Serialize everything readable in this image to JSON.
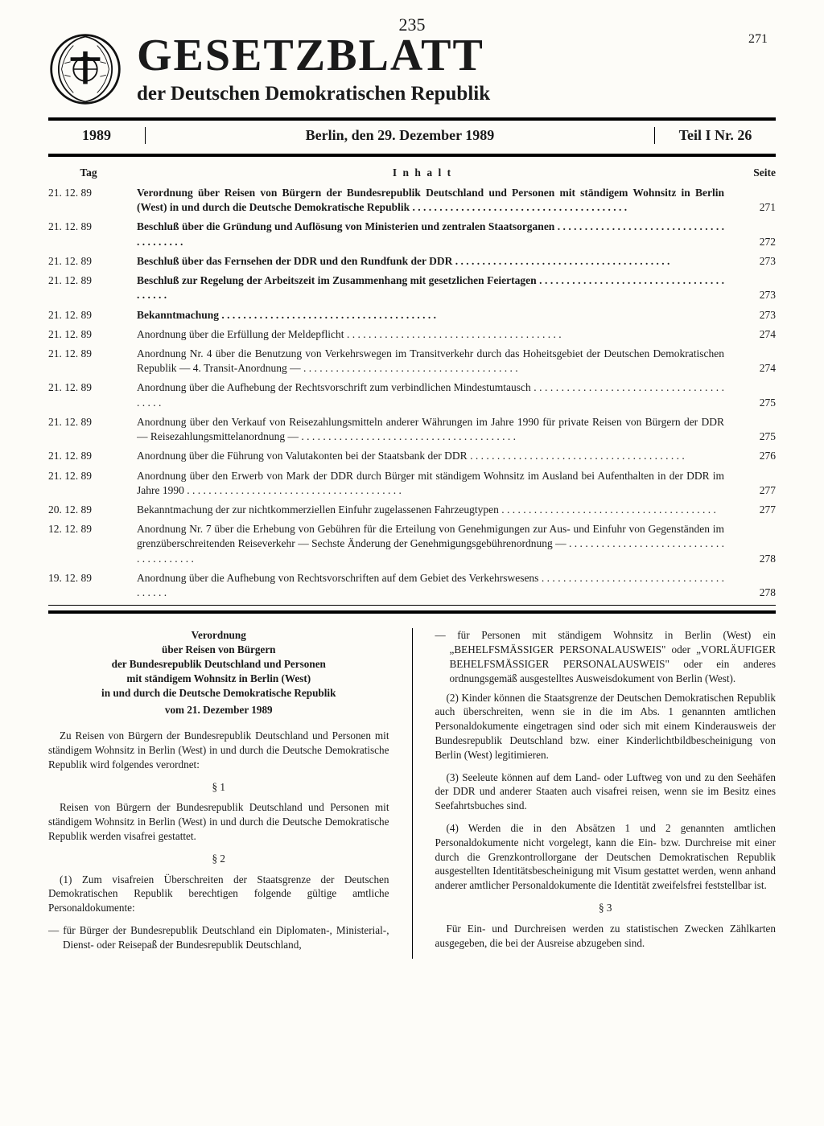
{
  "handwritten_mark": "235",
  "page_number_top": "271",
  "masthead": {
    "title": "GESETZBLATT",
    "subtitle": "der Deutschen Demokratischen Republik"
  },
  "infobar": {
    "year": "1989",
    "place_date": "Berlin, den 29. Dezember 1989",
    "issue": "Teil I Nr. 26"
  },
  "toc": {
    "head_date": "Tag",
    "head_title": "I n h a l t",
    "head_page": "Seite",
    "rows": [
      {
        "date": "21. 12. 89",
        "bold": true,
        "title": "Verordnung über Reisen von Bürgern der Bundesrepublik Deutschland und Personen mit ständigem Wohnsitz in Berlin (West) in und durch die Deutsche Demokratische Republik",
        "page": "271"
      },
      {
        "date": "21. 12. 89",
        "bold": true,
        "title": "Beschluß über die Gründung und Auflösung von Ministerien und zentralen Staatsorganen",
        "page": "272"
      },
      {
        "date": "21. 12. 89",
        "bold": true,
        "title": "Beschluß über das Fernsehen der DDR und den Rundfunk der DDR",
        "page": "273"
      },
      {
        "date": "21. 12. 89",
        "bold": true,
        "title": "Beschluß zur Regelung der Arbeitszeit im Zusammenhang mit gesetzlichen Feiertagen",
        "page": "273"
      },
      {
        "date": "21. 12. 89",
        "bold": true,
        "title": "Bekanntmachung",
        "page": "273"
      },
      {
        "date": "21. 12. 89",
        "bold": false,
        "title": "Anordnung über die Erfüllung der Meldepflicht",
        "page": "274"
      },
      {
        "date": "21. 12. 89",
        "bold": false,
        "title": "Anordnung Nr. 4 über die Benutzung von Verkehrswegen im Transitverkehr durch das Hoheitsgebiet der Deutschen Demokratischen Republik — 4. Transit-Anordnung —",
        "page": "274"
      },
      {
        "date": "21. 12. 89",
        "bold": false,
        "title": "Anordnung über die Aufhebung der Rechtsvorschrift zum verbindlichen Mindestumtausch",
        "page": "275"
      },
      {
        "date": "21. 12. 89",
        "bold": false,
        "title": "Anordnung über den Verkauf von Reisezahlungsmitteln anderer Währungen im Jahre 1990 für private Reisen von Bürgern der DDR — Reisezahlungsmittelanordnung —",
        "page": "275"
      },
      {
        "date": "21. 12. 89",
        "bold": false,
        "title": "Anordnung über die Führung von Valutakonten bei der Staatsbank der DDR",
        "page": "276"
      },
      {
        "date": "21. 12. 89",
        "bold": false,
        "title": "Anordnung über den Erwerb von Mark der DDR durch Bürger mit ständigem Wohnsitz im Ausland bei Aufenthalten in der DDR im Jahre 1990",
        "page": "277"
      },
      {
        "date": "20. 12. 89",
        "bold": false,
        "title": "Bekanntmachung der zur nichtkommerziellen Einfuhr zugelassenen Fahrzeugtypen",
        "page": "277"
      },
      {
        "date": "12. 12. 89",
        "bold": false,
        "title": "Anordnung Nr. 7 über die Erhebung von Gebühren für die Erteilung von Genehmigungen zur Aus- und Einfuhr von Gegenständen im grenzüberschreitenden Reiseverkehr — Sechste Änderung der Genehmigungsgebührenordnung —",
        "page": "278"
      },
      {
        "date": "19. 12. 89",
        "bold": false,
        "title": "Anordnung über die Aufhebung von Rechtsvorschriften auf dem Gebiet des Verkehrswesens",
        "page": "278"
      }
    ]
  },
  "ordinance": {
    "title_lines": [
      "Verordnung",
      "über Reisen von Bürgern",
      "der Bundesrepublik Deutschland und Personen",
      "mit ständigem Wohnsitz in Berlin (West)",
      "in und durch die Deutsche Demokratische Republik"
    ],
    "date_line": "vom 21. Dezember 1989",
    "preamble": "Zu Reisen von Bürgern der Bundesrepublik Deutschland und Personen mit ständigem Wohnsitz in Berlin (West) in und durch die Deutsche Demokratische Republik wird folgendes verordnet:",
    "s1": "§ 1",
    "p1": "Reisen von Bürgern der Bundesrepublik Deutschland und Personen mit ständigem Wohnsitz in Berlin (West) in und durch die Deutsche Demokratische Republik werden visafrei gestattet.",
    "s2": "§ 2",
    "p2a": "(1) Zum visafreien Überschreiten der Staatsgrenze der Deutschen Demokratischen Republik berechtigen folgende gültige amtliche Personaldokumente:",
    "p2a_item1": "— für Bürger der Bundesrepublik Deutschland ein Diplomaten-, Ministerial-, Dienst- oder Reisepaß der Bundesrepublik Deutschland,",
    "p2a_item2": "— für Personen mit ständigem Wohnsitz in Berlin (West) ein „BEHELFSMÄSSIGER PERSONALAUSWEIS\" oder „VORLÄUFIGER BEHELFSMÄSSIGER PERSONALAUSWEIS\" oder ein anderes ordnungsgemäß ausgestelltes Ausweisdokument von Berlin (West).",
    "p2b": "(2) Kinder können die Staatsgrenze der Deutschen Demokratischen Republik auch überschreiten, wenn sie in die im Abs. 1 genannten amtlichen Personaldokumente eingetragen sind oder sich mit einem Kinderausweis der Bundesrepublik Deutschland bzw. einer Kinderlichtbildbescheinigung von Berlin (West) legitimieren.",
    "p2c": "(3) Seeleute können auf dem Land- oder Luftweg von und zu den Seehäfen der DDR und anderer Staaten auch visafrei reisen, wenn sie im Besitz eines Seefahrtsbuches sind.",
    "p2d": "(4) Werden die in den Absätzen 1 und 2 genannten amtlichen Personaldokumente nicht vorgelegt, kann die Ein- bzw. Durchreise mit einer durch die Grenzkontrollorgane der Deutschen Demokratischen Republik ausgestellten Identitätsbescheinigung mit Visum gestattet werden, wenn anhand anderer amtlicher Personaldokumente die Identität zweifelsfrei feststellbar ist.",
    "s3": "§ 3",
    "p3": "Für Ein- und Durchreisen werden zu statistischen Zwecken Zählkarten ausgegeben, die bei der Ausreise abzugeben sind."
  }
}
